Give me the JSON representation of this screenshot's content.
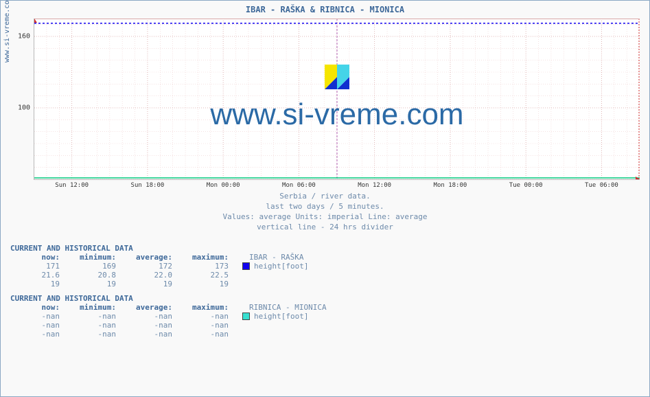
{
  "chart": {
    "type": "line",
    "title": "IBAR -  RAŠKA &  RIBNICA -  MIONICA",
    "ylabel_side": "www.si-vreme.com",
    "watermark": "www.si-vreme.com",
    "background_color": "#ffffff",
    "frame_color": "#b9b9b9",
    "grid_color_minor": "#efcfcf",
    "grid_color_major": "#d9a9a9",
    "divider_color": "#b060b0",
    "series": [
      {
        "name": "IBAR - RAŠKA",
        "color": "#1100ee",
        "y_value": 171,
        "dash": "3,3"
      },
      {
        "name": "RIBNICA - MIONICA",
        "color": "#00c97d",
        "y_value": null
      }
    ],
    "y_axis": {
      "min": 40,
      "max": 175,
      "ticks": [
        {
          "v": 100,
          "label": "100"
        },
        {
          "v": 160,
          "label": "160"
        }
      ]
    },
    "x_axis": {
      "ticks": [
        {
          "p": 0.062,
          "label": "Sun 12:00"
        },
        {
          "p": 0.187,
          "label": "Sun 18:00"
        },
        {
          "p": 0.312,
          "label": "Mon 00:00"
        },
        {
          "p": 0.437,
          "label": "Mon 06:00"
        },
        {
          "p": 0.562,
          "label": "Mon 12:00"
        },
        {
          "p": 0.687,
          "label": "Mon 18:00"
        },
        {
          "p": 0.812,
          "label": "Tue 00:00"
        },
        {
          "p": 0.937,
          "label": "Tue 06:00"
        }
      ],
      "minor_per_major": 6,
      "divider_at": 0.5
    },
    "logo_colors": {
      "yellow": "#f5e500",
      "cyan": "#45d4e8",
      "blue": "#1030d0"
    }
  },
  "caption": {
    "l1": "Serbia / river data.",
    "l2": "last two days / 5 minutes.",
    "l3": "Values: average  Units: imperial  Line: average",
    "l4": "vertical line - 24 hrs  divider"
  },
  "tables": {
    "header": "CURRENT AND HISTORICAL DATA",
    "cols": {
      "now": "now:",
      "min": "minimum:",
      "avg": "average:",
      "max": "maximum:"
    },
    "sets": [
      {
        "label": "IBAR -  RAŠKA",
        "legend_label": "height[foot]",
        "swatch": "#1100ee",
        "rows": [
          [
            "171",
            "169",
            "172",
            "173"
          ],
          [
            "21.6",
            "20.8",
            "22.0",
            "22.5"
          ],
          [
            "19",
            "19",
            "19",
            "19"
          ]
        ]
      },
      {
        "label": "RIBNICA -  MIONICA",
        "legend_label": "height[foot]",
        "swatch": "#38e0d0",
        "rows": [
          [
            "-nan",
            "-nan",
            "-nan",
            "-nan"
          ],
          [
            "-nan",
            "-nan",
            "-nan",
            "-nan"
          ],
          [
            "-nan",
            "-nan",
            "-nan",
            "-nan"
          ]
        ]
      }
    ]
  }
}
